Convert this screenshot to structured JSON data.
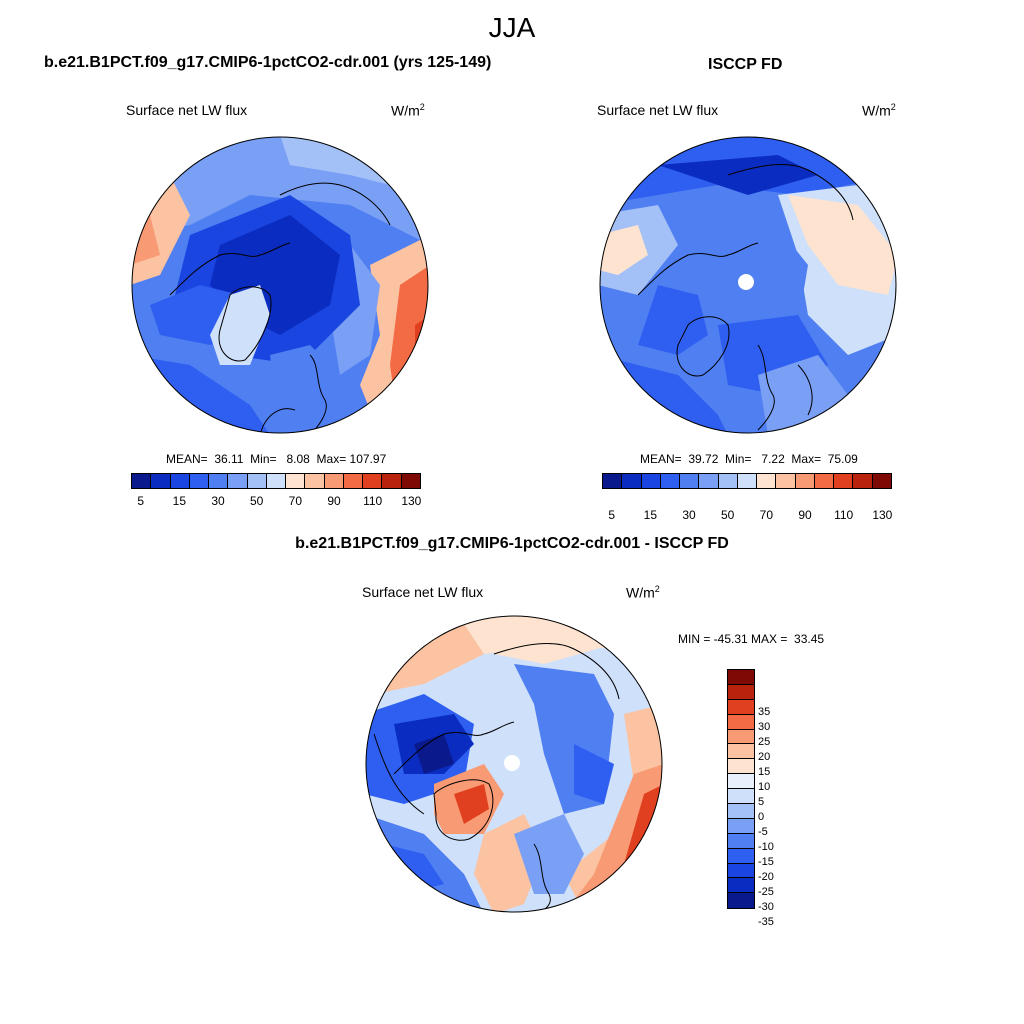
{
  "figure": {
    "season": "JJA",
    "panel_model_title": "b.e21.B1PCT.f09_g17.CMIP6-1pctCO2-cdr.001 (yrs 125-149)",
    "panel_obs_title": "ISCCP FD",
    "panel_diff_title": "b.e21.B1PCT.f09_g17.CMIP6-1pctCO2-cdr.001 - ISCCP FD"
  },
  "panels": {
    "model": {
      "variable": "Surface net LW flux",
      "units": "W/m",
      "units_exp": "2",
      "stats": "MEAN=  36.11  Min=   8.08  Max= 107.97"
    },
    "obs": {
      "variable": "Surface net LW flux",
      "units": "W/m",
      "units_exp": "2",
      "stats": "MEAN=  39.72  Min=   7.22  Max=  75.09"
    },
    "diff": {
      "variable": "Surface net LW flux",
      "units": "W/m",
      "units_exp": "2",
      "stats": "MIN = -45.31 MAX =  33.45"
    }
  },
  "colorbars": {
    "abs": {
      "colors": [
        "#0a1a8c",
        "#0a2cc0",
        "#1a45e0",
        "#2f5ff0",
        "#507ff2",
        "#7aa0f5",
        "#a3c0f7",
        "#cfe0fa",
        "#fde3d0",
        "#fbc3a2",
        "#f89a73",
        "#f26b45",
        "#e0401f",
        "#b8230d",
        "#7d0a05"
      ],
      "tick_labels": [
        "5",
        "15",
        "30",
        "50",
        "70",
        "90",
        "110",
        "130"
      ]
    },
    "diff": {
      "colors": [
        "#7d0a05",
        "#b8230d",
        "#e0401f",
        "#f26b45",
        "#f89a73",
        "#fbc3a2",
        "#fde3d0",
        "#e8f0fb",
        "#cfe0fa",
        "#a3c0f7",
        "#7aa0f5",
        "#507ff2",
        "#2f5ff0",
        "#1a45e0",
        "#0a2cc0",
        "#0a1a8c"
      ],
      "tick_labels": [
        "35",
        "30",
        "25",
        "20",
        "15",
        "10",
        "5",
        "0",
        "-5",
        "-10",
        "-15",
        "-20",
        "-25",
        "-30",
        "-35"
      ]
    }
  },
  "map_colors": {
    "deep_blue": "#0a2cc0",
    "mid_blue": "#2f5ff0",
    "light_blue": "#7aa0f5",
    "pale_blue": "#cfe0fa",
    "peach": "#fbc3a2",
    "orange": "#f26b45",
    "red": "#b8230d"
  }
}
